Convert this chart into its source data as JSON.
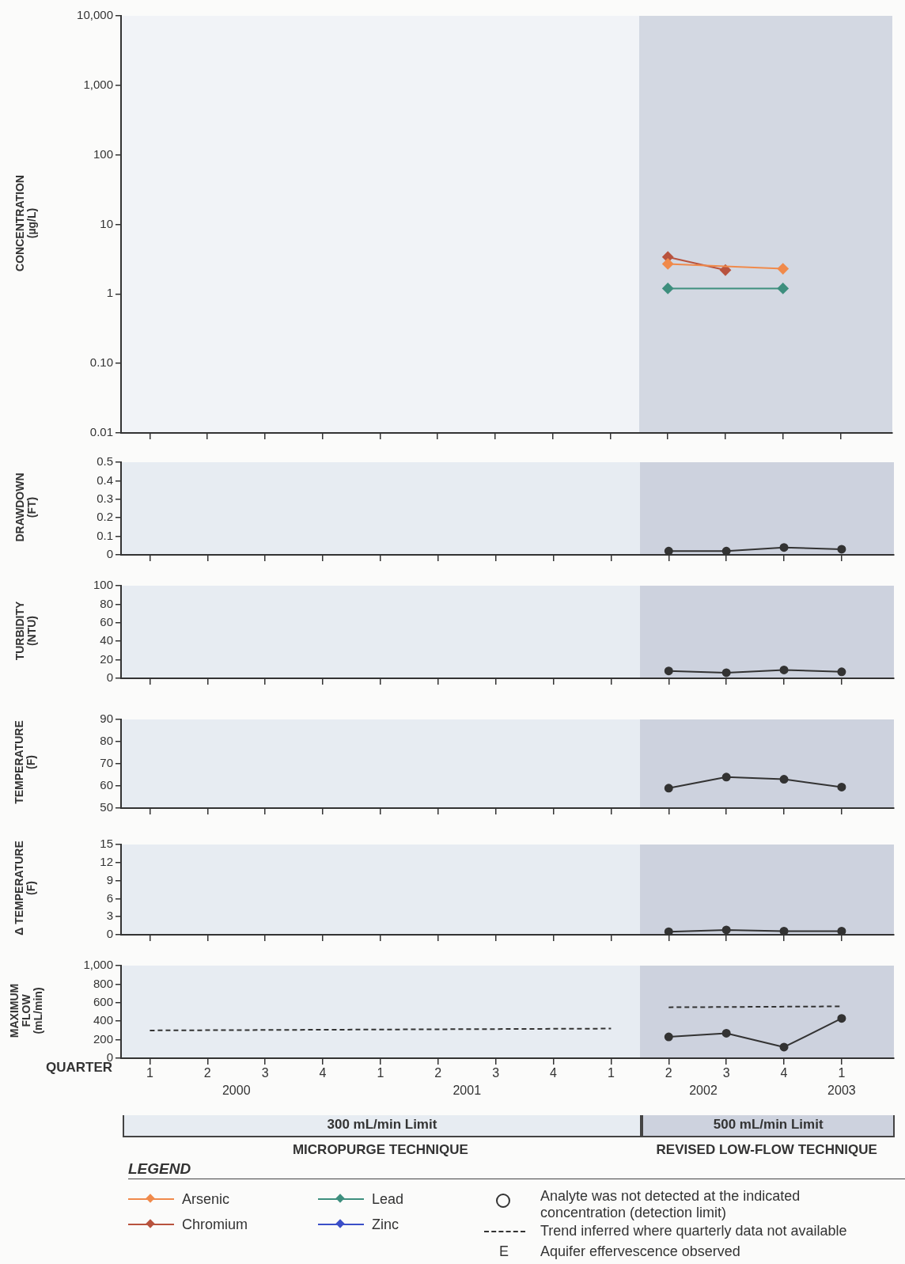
{
  "chart_data": [
    {
      "type": "line",
      "ylabel": "CONCENTRATION\n(µg/L)",
      "log": "y",
      "legend": "bottom",
      "legend_title": "LEGEND",
      "marker": "diamond",
      "tick_labels": "y",
      "categories": [
        null,
        null,
        null,
        null,
        null,
        null,
        null,
        null,
        null,
        null,
        null,
        null,
        null
      ],
      "ylim": [
        0.01,
        10000
      ],
      "yticks": [
        {
          "value": 0.01,
          "label": "0.01"
        },
        {
          "value": 0.1,
          "label": "0.10"
        },
        1,
        10,
        100,
        {
          "value": 1000,
          "label": "1,000"
        },
        {
          "value": 10000,
          "label": "10,000"
        }
      ],
      "series": [
        {
          "name": "Arsenic",
          "color": "#f08a4b",
          "values": [
            null,
            null,
            null,
            null,
            null,
            null,
            null,
            null,
            null,
            2.7,
            null,
            2.3,
            null
          ]
        },
        {
          "name": "Chromium",
          "color": "#b8533e",
          "values": [
            null,
            null,
            null,
            null,
            null,
            null,
            null,
            null,
            null,
            3.4,
            2.2,
            null,
            null
          ]
        },
        {
          "name": "Lead",
          "color": "#3e8f7e",
          "values": [
            null,
            null,
            null,
            null,
            null,
            null,
            null,
            null,
            null,
            1.2,
            null,
            1.2,
            null
          ]
        },
        {
          "name": "Zinc",
          "color": "#3b4fc8",
          "values": [
            null,
            null,
            null,
            null,
            null,
            null,
            null,
            null,
            null,
            null,
            null,
            null,
            null
          ]
        }
      ],
      "annotations": [
        "Analyte was not detected at the indicated concentration (detection limit)",
        "Trend inferred where quarterly data not available",
        "E",
        "Aquifer effervescence observed"
      ]
    },
    {
      "type": "line",
      "ylabel": "DRAWDOWN\n(FT)",
      "marker": "circle",
      "tick_labels": "y",
      "categories": [
        null,
        null,
        null,
        null,
        null,
        null,
        null,
        null,
        null,
        null,
        null,
        null,
        null
      ],
      "ylim": [
        0,
        0.5
      ],
      "yticks": [
        0,
        0.1,
        0.2,
        0.3,
        0.4,
        0.5
      ],
      "series": [
        {
          "color": "#333333",
          "values": [
            null,
            null,
            null,
            null,
            null,
            null,
            null,
            null,
            null,
            0.02,
            0.02,
            0.04,
            0.03
          ]
        }
      ]
    },
    {
      "type": "line",
      "ylabel": "TURBIDITY\n(NTU)",
      "marker": "circle",
      "tick_labels": "y",
      "categories": [
        null,
        null,
        null,
        null,
        null,
        null,
        null,
        null,
        null,
        null,
        null,
        null,
        null
      ],
      "ylim": [
        0,
        100
      ],
      "yticks": [
        0,
        20,
        40,
        60,
        80,
        100
      ],
      "series": [
        {
          "color": "#333333",
          "values": [
            null,
            null,
            null,
            null,
            null,
            null,
            null,
            null,
            null,
            8,
            6,
            9,
            7
          ]
        }
      ]
    },
    {
      "type": "line",
      "ylabel": "TEMPERATURE\n(F)",
      "marker": "circle",
      "tick_labels": "y",
      "categories": [
        null,
        null,
        null,
        null,
        null,
        null,
        null,
        null,
        null,
        null,
        null,
        null,
        null
      ],
      "ylim": [
        50,
        90
      ],
      "yticks": [
        50,
        60,
        70,
        80,
        90
      ],
      "series": [
        {
          "color": "#333333",
          "values": [
            null,
            null,
            null,
            null,
            null,
            null,
            null,
            null,
            null,
            59,
            64,
            63,
            59.5
          ]
        }
      ]
    },
    {
      "type": "line",
      "ylabel": "Δ TEMPERATURE\n(F)",
      "marker": "circle",
      "tick_labels": "y",
      "categories": [
        null,
        null,
        null,
        null,
        null,
        null,
        null,
        null,
        null,
        null,
        null,
        null,
        null
      ],
      "ylim": [
        0,
        15
      ],
      "yticks": [
        0,
        3,
        6,
        9,
        12,
        15
      ],
      "series": [
        {
          "color": "#333333",
          "values": [
            null,
            null,
            null,
            null,
            null,
            null,
            null,
            null,
            null,
            0.5,
            0.8,
            0.6,
            0.6
          ]
        }
      ]
    },
    {
      "type": "line",
      "ylabel": "MAXIMUM\nFLOW\n(mL/min)",
      "xlabel": "QUARTER",
      "marker": "circle",
      "categories": [
        "1",
        "2",
        "3",
        "4",
        "1",
        "2",
        "3",
        "4",
        "1",
        "2",
        "3",
        "4",
        "1"
      ],
      "ylim": [
        0,
        1000
      ],
      "yticks": [
        0,
        200,
        400,
        600,
        800,
        {
          "value": 1000,
          "label": "1,000"
        }
      ],
      "series": [
        {
          "color": "#333333",
          "values": [
            null,
            null,
            null,
            null,
            null,
            null,
            null,
            null,
            null,
            230,
            270,
            120,
            430
          ]
        },
        {
          "color": "#333333",
          "values": [
            300,
            null,
            null,
            null,
            null,
            null,
            null,
            null,
            320,
            null,
            null,
            null,
            null
          ],
          "line_style": "dashed",
          "marker": "none"
        },
        {
          "color": "#333333",
          "values": [
            null,
            null,
            null,
            null,
            null,
            null,
            null,
            null,
            null,
            550,
            null,
            null,
            560
          ],
          "line_style": "dashed",
          "marker": "none"
        }
      ],
      "annotations": [
        "300 mL/min Limit",
        "500 mL/min Limit",
        "MICROPURGE TECHNIQUE",
        "REVISED LOW-FLOW TECHNIQUE",
        "2000",
        "2001",
        "2002",
        "2003"
      ]
    }
  ]
}
